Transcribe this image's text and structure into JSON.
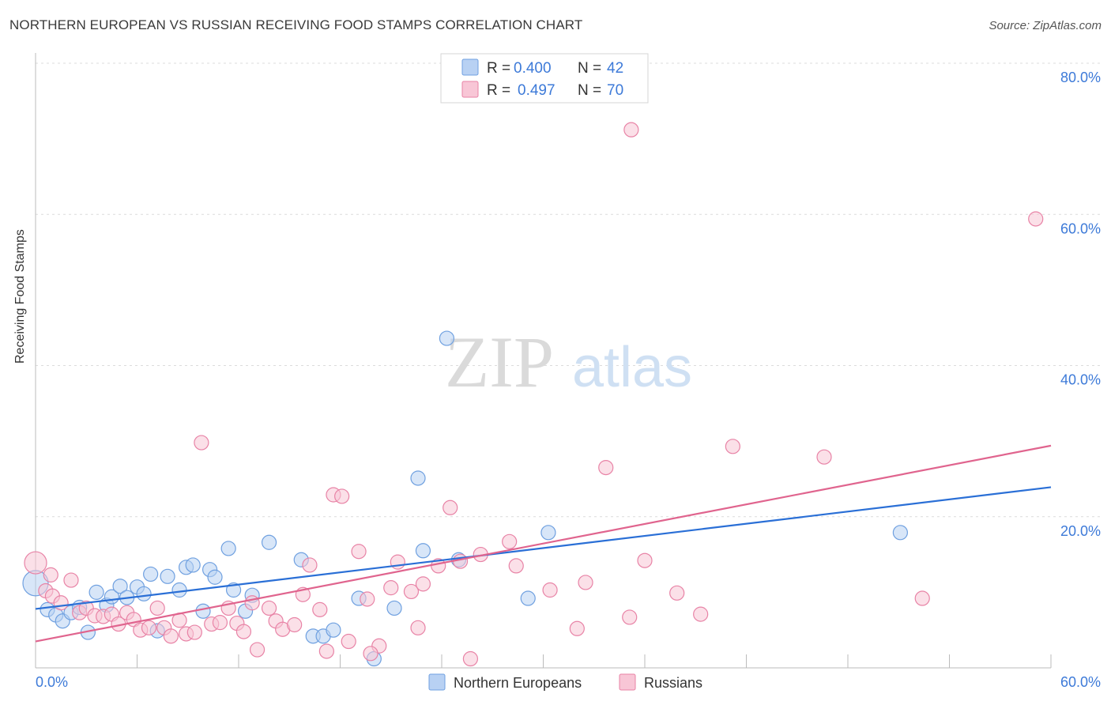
{
  "title": "NORTHERN EUROPEAN VS RUSSIAN RECEIVING FOOD STAMPS CORRELATION CHART",
  "source": "Source: ZipAtlas.com",
  "watermark": {
    "zip": "ZIP",
    "atlas": "atlas"
  },
  "legend_stats": [
    {
      "r_label": "R =",
      "r_value": "0.400",
      "n_label": "N =",
      "n_value": "42",
      "color": "#6fa0e0",
      "fill": "#b8d1f3"
    },
    {
      "r_label": "R =",
      "r_value": "0.497",
      "n_label": "N =",
      "n_value": "70",
      "color": "#e883a6",
      "fill": "#f8c6d6"
    }
  ],
  "chart_data": {
    "type": "scatter",
    "ylabel": "Receiving Food Stamps",
    "xlabel": "",
    "xlim": [
      0,
      60
    ],
    "ylim": [
      0,
      80
    ],
    "x_tick_labels": [
      {
        "value": 0,
        "label": "0.0%"
      },
      {
        "value": 60,
        "label": "60.0%"
      }
    ],
    "y_tick_labels": [
      {
        "value": 20,
        "label": "20.0%"
      },
      {
        "value": 40,
        "label": "40.0%"
      },
      {
        "value": 60,
        "label": "60.0%"
      },
      {
        "value": 80,
        "label": "80.0%"
      }
    ],
    "grid": "horizontal dashed",
    "legend_position": "bottom-center",
    "series": [
      {
        "name": "Northern Europeans",
        "color": "#6fa0e0",
        "fill": "#b8d1f3",
        "trend_color": "#2a6fd6",
        "trend": {
          "x0": 0,
          "y0": 7.8,
          "x1": 60,
          "y1": 23.9
        },
        "points": [
          [
            0.0,
            11.2
          ],
          [
            0.7,
            7.7
          ],
          [
            1.2,
            7.0
          ],
          [
            1.6,
            6.2
          ],
          [
            2.1,
            7.3
          ],
          [
            2.6,
            8.0
          ],
          [
            3.1,
            4.7
          ],
          [
            3.6,
            10.0
          ],
          [
            4.2,
            8.3
          ],
          [
            4.5,
            9.4
          ],
          [
            5.0,
            10.8
          ],
          [
            5.4,
            9.3
          ],
          [
            6.0,
            10.7
          ],
          [
            6.4,
            9.8
          ],
          [
            6.8,
            12.4
          ],
          [
            7.2,
            4.9
          ],
          [
            7.8,
            12.1
          ],
          [
            8.5,
            10.3
          ],
          [
            8.9,
            13.3
          ],
          [
            9.3,
            13.6
          ],
          [
            9.9,
            7.5
          ],
          [
            10.3,
            13.0
          ],
          [
            10.6,
            12.0
          ],
          [
            11.4,
            15.8
          ],
          [
            11.7,
            10.3
          ],
          [
            12.4,
            7.5
          ],
          [
            12.8,
            9.6
          ],
          [
            13.8,
            16.6
          ],
          [
            15.7,
            14.3
          ],
          [
            16.4,
            4.2
          ],
          [
            17.0,
            4.2
          ],
          [
            17.6,
            5.0
          ],
          [
            19.1,
            9.2
          ],
          [
            20.0,
            1.2
          ],
          [
            21.2,
            7.9
          ],
          [
            22.6,
            25.1
          ],
          [
            22.9,
            15.5
          ],
          [
            24.3,
            43.6
          ],
          [
            25.0,
            14.3
          ],
          [
            29.1,
            9.2
          ],
          [
            30.3,
            17.9
          ],
          [
            51.1,
            17.9
          ]
        ]
      },
      {
        "name": "Russians",
        "color": "#e883a6",
        "fill": "#f8c6d6",
        "trend_color": "#e0648e",
        "trend": {
          "x0": 0,
          "y0": 3.5,
          "x1": 60,
          "y1": 29.4
        },
        "points": [
          [
            0.0,
            13.9
          ],
          [
            0.6,
            10.2
          ],
          [
            1.0,
            9.5
          ],
          [
            1.5,
            8.6
          ],
          [
            2.1,
            11.6
          ],
          [
            2.6,
            7.3
          ],
          [
            3.0,
            7.9
          ],
          [
            3.5,
            6.9
          ],
          [
            4.0,
            6.8
          ],
          [
            4.5,
            7.1
          ],
          [
            4.9,
            5.8
          ],
          [
            5.4,
            7.3
          ],
          [
            5.8,
            6.4
          ],
          [
            6.2,
            5.0
          ],
          [
            6.7,
            5.3
          ],
          [
            7.2,
            7.9
          ],
          [
            7.6,
            5.3
          ],
          [
            8.0,
            4.2
          ],
          [
            8.5,
            6.3
          ],
          [
            8.9,
            4.5
          ],
          [
            9.4,
            4.7
          ],
          [
            9.8,
            29.8
          ],
          [
            10.4,
            5.8
          ],
          [
            10.9,
            6.0
          ],
          [
            11.4,
            7.9
          ],
          [
            11.9,
            5.9
          ],
          [
            12.3,
            4.8
          ],
          [
            12.8,
            8.6
          ],
          [
            13.1,
            2.4
          ],
          [
            13.8,
            7.9
          ],
          [
            14.2,
            6.2
          ],
          [
            14.6,
            5.1
          ],
          [
            15.3,
            5.7
          ],
          [
            15.8,
            9.7
          ],
          [
            16.2,
            13.6
          ],
          [
            16.8,
            7.7
          ],
          [
            17.2,
            2.2
          ],
          [
            17.6,
            22.9
          ],
          [
            18.1,
            22.7
          ],
          [
            18.5,
            3.5
          ],
          [
            19.1,
            15.4
          ],
          [
            19.6,
            9.1
          ],
          [
            20.3,
            2.9
          ],
          [
            19.8,
            1.9
          ],
          [
            21.0,
            10.6
          ],
          [
            21.4,
            14.0
          ],
          [
            22.2,
            10.1
          ],
          [
            22.6,
            5.3
          ],
          [
            22.9,
            11.1
          ],
          [
            23.8,
            13.5
          ],
          [
            24.5,
            21.2
          ],
          [
            25.1,
            14.1
          ],
          [
            25.7,
            1.2
          ],
          [
            26.3,
            15.0
          ],
          [
            28.0,
            16.7
          ],
          [
            28.4,
            13.5
          ],
          [
            30.4,
            10.3
          ],
          [
            32.0,
            5.2
          ],
          [
            32.5,
            11.3
          ],
          [
            33.7,
            26.5
          ],
          [
            35.1,
            6.7
          ],
          [
            35.2,
            71.2
          ],
          [
            36.0,
            14.2
          ],
          [
            37.9,
            9.9
          ],
          [
            39.3,
            7.1
          ],
          [
            41.2,
            29.3
          ],
          [
            46.6,
            27.9
          ],
          [
            52.4,
            9.2
          ],
          [
            59.1,
            59.4
          ],
          [
            0.9,
            12.3
          ]
        ]
      }
    ]
  }
}
